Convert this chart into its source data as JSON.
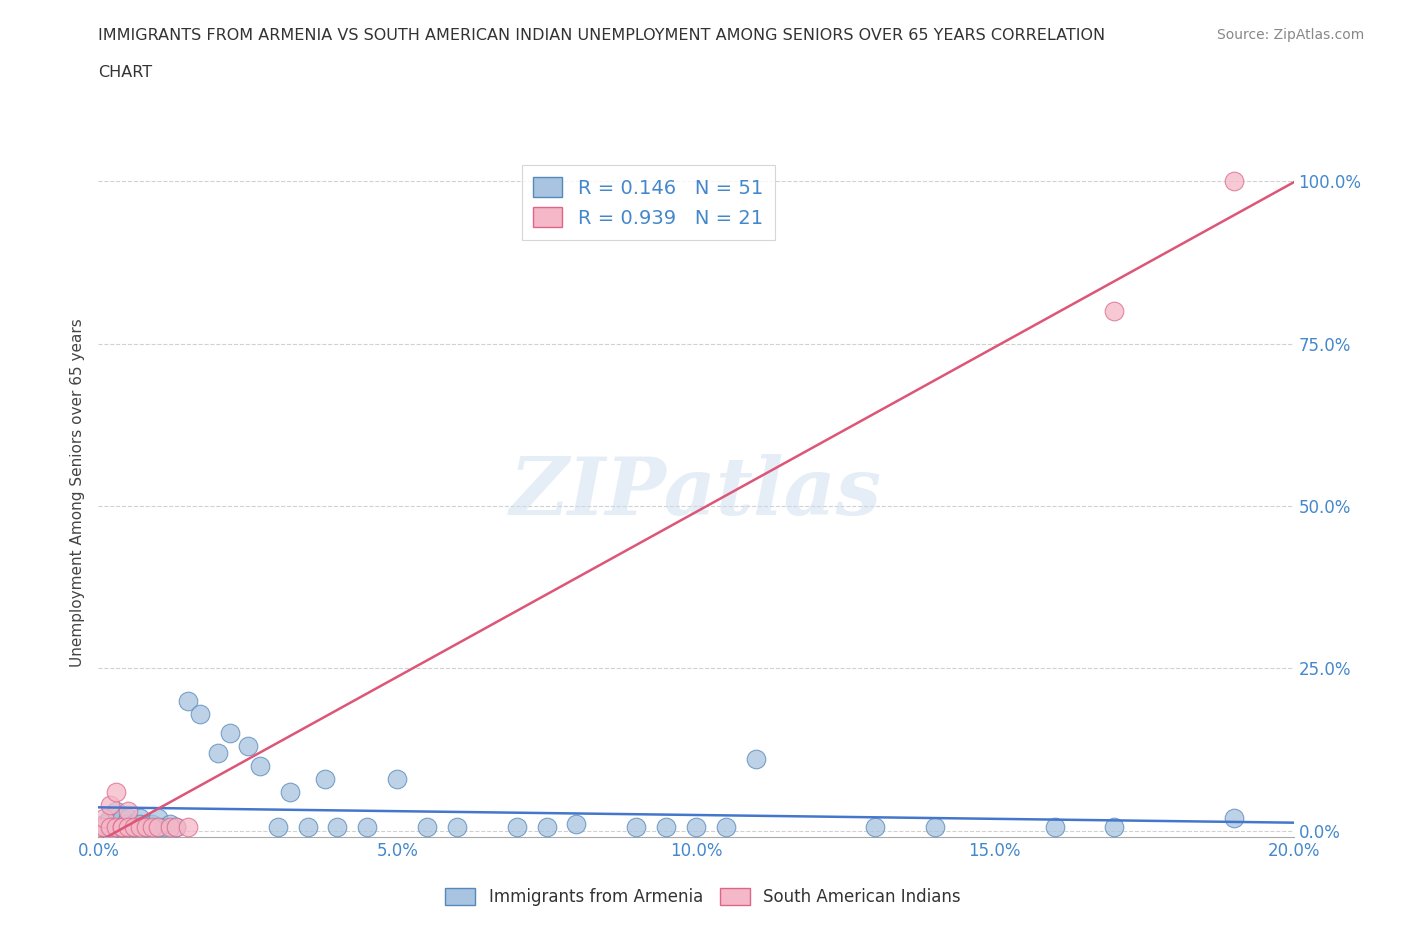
{
  "title_line1": "IMMIGRANTS FROM ARMENIA VS SOUTH AMERICAN INDIAN UNEMPLOYMENT AMONG SENIORS OVER 65 YEARS CORRELATION",
  "title_line2": "CHART",
  "source": "Source: ZipAtlas.com",
  "xlabel_ticks": [
    "0.0%",
    "5.0%",
    "10.0%",
    "15.0%",
    "20.0%"
  ],
  "ylabel_ticks": [
    "0.0%",
    "25.0%",
    "50.0%",
    "75.0%",
    "100.0%"
  ],
  "xlim": [
    0.0,
    0.2
  ],
  "ylim": [
    -0.01,
    1.05
  ],
  "ylabel": "Unemployment Among Seniors over 65 years",
  "armenia_color": "#a8c4e0",
  "armenia_edge": "#5588bb",
  "south_am_color": "#f4b8c8",
  "south_am_edge": "#dd6688",
  "armenia_line_color": "#4477cc",
  "south_am_line_color": "#dd5577",
  "armenia_R": 0.146,
  "armenia_N": 51,
  "south_am_R": 0.939,
  "south_am_N": 21,
  "legend_label_1": "Immigrants from Armenia",
  "legend_label_2": "South American Indians",
  "watermark": "ZIPatlas",
  "background_color": "#ffffff",
  "grid_color": "#cccccc",
  "tick_color": "#4488cc",
  "armenia_x": [
    0.001,
    0.001,
    0.002,
    0.002,
    0.003,
    0.003,
    0.003,
    0.004,
    0.004,
    0.005,
    0.005,
    0.005,
    0.006,
    0.006,
    0.007,
    0.007,
    0.008,
    0.009,
    0.01,
    0.01,
    0.011,
    0.012,
    0.013,
    0.015,
    0.017,
    0.02,
    0.022,
    0.025,
    0.027,
    0.03,
    0.032,
    0.035,
    0.038,
    0.04,
    0.045,
    0.05,
    0.055,
    0.06,
    0.07,
    0.075,
    0.08,
    0.09,
    0.095,
    0.1,
    0.105,
    0.11,
    0.13,
    0.14,
    0.16,
    0.17,
    0.19
  ],
  "armenia_y": [
    0.005,
    0.01,
    0.0,
    0.02,
    0.01,
    0.005,
    0.03,
    0.02,
    0.005,
    0.01,
    0.005,
    0.02,
    0.01,
    0.005,
    0.02,
    0.01,
    0.005,
    0.01,
    0.005,
    0.02,
    0.005,
    0.01,
    0.005,
    0.2,
    0.18,
    0.12,
    0.15,
    0.13,
    0.1,
    0.005,
    0.06,
    0.005,
    0.08,
    0.005,
    0.005,
    0.08,
    0.005,
    0.005,
    0.005,
    0.005,
    0.01,
    0.005,
    0.005,
    0.005,
    0.005,
    0.11,
    0.005,
    0.005,
    0.005,
    0.005,
    0.02
  ],
  "south_x": [
    0.0,
    0.001,
    0.001,
    0.002,
    0.002,
    0.003,
    0.003,
    0.004,
    0.004,
    0.005,
    0.005,
    0.006,
    0.007,
    0.008,
    0.009,
    0.01,
    0.012,
    0.013,
    0.015,
    0.17,
    0.19
  ],
  "south_y": [
    0.005,
    0.005,
    0.02,
    0.005,
    0.04,
    0.005,
    0.06,
    0.005,
    0.005,
    0.03,
    0.005,
    0.005,
    0.005,
    0.005,
    0.005,
    0.005,
    0.005,
    0.005,
    0.005,
    0.8,
    1.0
  ]
}
